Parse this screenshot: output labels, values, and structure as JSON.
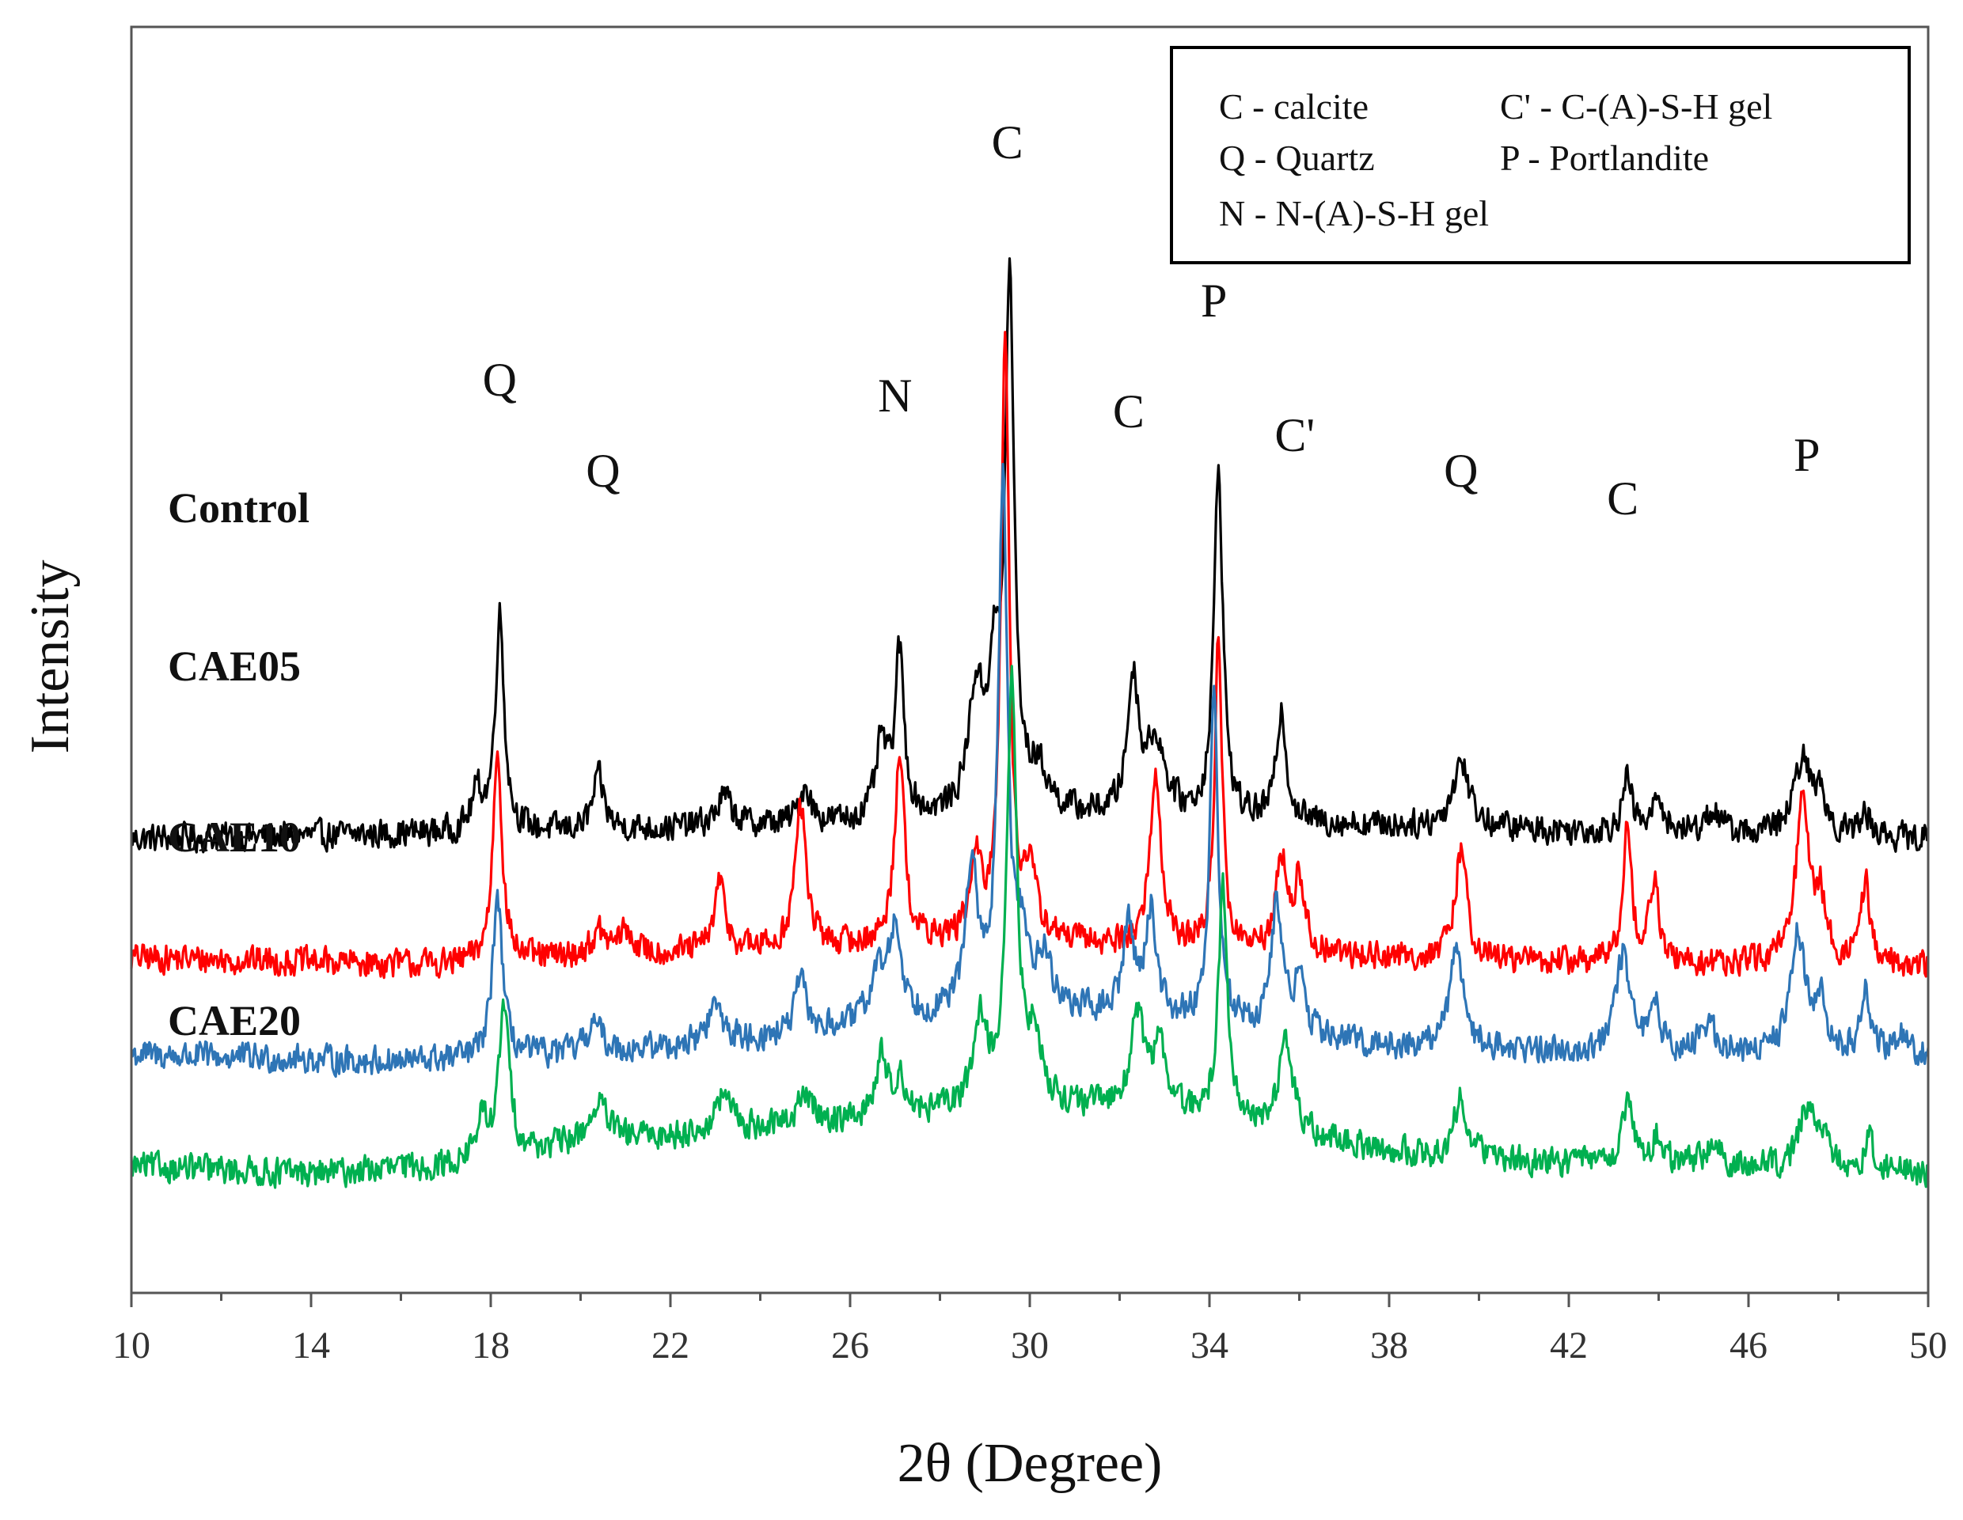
{
  "chart_data": {
    "type": "line",
    "title": "",
    "xlabel": "2θ (Degree)",
    "ylabel": "Intensity",
    "xlim": [
      10,
      50
    ],
    "x_ticks": [
      10,
      14,
      18,
      22,
      26,
      30,
      34,
      38,
      42,
      46,
      50
    ],
    "x_tick_labels": [
      "10",
      "14",
      "18",
      "22",
      "26",
      "30",
      "34",
      "38",
      "42",
      "46",
      "50"
    ],
    "y_ticks_shown": false,
    "grid": false,
    "legend": {
      "placement": "top-right",
      "entries": [
        "C - calcite",
        "C' - C-(A)-S-H gel",
        "Q - Quartz",
        "P - Portlandite",
        "N - N-(A)-S-H gel"
      ]
    },
    "peak_annotations": [
      {
        "label": "Q",
        "x": 18.2
      },
      {
        "label": "Q",
        "x": 20.5
      },
      {
        "label": "N",
        "x": 27.0
      },
      {
        "label": "C",
        "x": 29.5
      },
      {
        "label": "C",
        "x": 32.2
      },
      {
        "label": "P",
        "x": 34.1
      },
      {
        "label": "C'",
        "x": 35.9
      },
      {
        "label": "Q",
        "x": 39.6
      },
      {
        "label": "C",
        "x": 43.2
      },
      {
        "label": "P",
        "x": 47.3
      }
    ],
    "series": [
      {
        "name": "Control",
        "color": "#000000",
        "baseline": [
          [
            10,
            31
          ],
          [
            20,
            32
          ],
          [
            26,
            33
          ],
          [
            30,
            34
          ],
          [
            36,
            33
          ],
          [
            42,
            32
          ],
          [
            50,
            31
          ]
        ],
        "peaks": [
          {
            "x": 17.7,
            "h": 5,
            "w": 0.15
          },
          {
            "x": 18.2,
            "h": 29,
            "w": 0.12
          },
          {
            "x": 20.4,
            "h": 7,
            "w": 0.15
          },
          {
            "x": 23.2,
            "h": 4,
            "w": 0.2
          },
          {
            "x": 25.0,
            "h": 5,
            "w": 0.15
          },
          {
            "x": 26.7,
            "h": 10,
            "w": 0.15
          },
          {
            "x": 27.1,
            "h": 22,
            "w": 0.12
          },
          {
            "x": 28.8,
            "h": 16,
            "w": 0.2
          },
          {
            "x": 29.2,
            "h": 16,
            "w": 0.15
          },
          {
            "x": 29.55,
            "h": 70,
            "w": 0.12
          },
          {
            "x": 30.2,
            "h": 5,
            "w": 0.25
          },
          {
            "x": 32.3,
            "h": 18,
            "w": 0.15
          },
          {
            "x": 32.8,
            "h": 10,
            "w": 0.25
          },
          {
            "x": 34.2,
            "h": 47,
            "w": 0.12
          },
          {
            "x": 35.6,
            "h": 15,
            "w": 0.13
          },
          {
            "x": 39.6,
            "h": 9,
            "w": 0.22
          },
          {
            "x": 43.3,
            "h": 7,
            "w": 0.13
          },
          {
            "x": 44.0,
            "h": 5,
            "w": 0.13
          },
          {
            "x": 45.2,
            "h": 3,
            "w": 0.2
          },
          {
            "x": 47.2,
            "h": 10,
            "w": 0.22
          },
          {
            "x": 47.6,
            "h": 5,
            "w": 0.15
          },
          {
            "x": 48.6,
            "h": 3,
            "w": 0.15
          }
        ]
      },
      {
        "name": "CAE05",
        "color": "#ff0000",
        "baseline": [
          [
            10,
            15
          ],
          [
            17,
            14
          ],
          [
            20,
            15
          ],
          [
            24,
            16
          ],
          [
            28,
            17
          ],
          [
            30,
            17
          ],
          [
            34,
            16
          ],
          [
            38,
            15
          ],
          [
            44,
            14
          ],
          [
            50,
            14
          ]
        ],
        "peaks": [
          {
            "x": 18.15,
            "h": 29,
            "w": 0.12
          },
          {
            "x": 20.4,
            "h": 3,
            "w": 0.2
          },
          {
            "x": 21.0,
            "h": 3,
            "w": 0.2
          },
          {
            "x": 23.1,
            "h": 9,
            "w": 0.15
          },
          {
            "x": 24.9,
            "h": 19,
            "w": 0.15
          },
          {
            "x": 27.1,
            "h": 26,
            "w": 0.13
          },
          {
            "x": 28.8,
            "h": 10,
            "w": 0.15
          },
          {
            "x": 29.45,
            "h": 82,
            "w": 0.11
          },
          {
            "x": 30.0,
            "h": 8,
            "w": 0.2
          },
          {
            "x": 32.8,
            "h": 23,
            "w": 0.15
          },
          {
            "x": 34.2,
            "h": 42,
            "w": 0.1
          },
          {
            "x": 35.6,
            "h": 13,
            "w": 0.13
          },
          {
            "x": 36.0,
            "h": 10,
            "w": 0.13
          },
          {
            "x": 39.6,
            "h": 15,
            "w": 0.15
          },
          {
            "x": 43.3,
            "h": 18,
            "w": 0.12
          },
          {
            "x": 43.9,
            "h": 11,
            "w": 0.12
          },
          {
            "x": 47.2,
            "h": 21,
            "w": 0.18
          },
          {
            "x": 47.6,
            "h": 8,
            "w": 0.15
          },
          {
            "x": 48.6,
            "h": 11,
            "w": 0.12
          }
        ]
      },
      {
        "name": "CAE10",
        "color": "#2e75b6",
        "baseline": [
          [
            10,
            2
          ],
          [
            16,
            1
          ],
          [
            20,
            2
          ],
          [
            24,
            4
          ],
          [
            28,
            7
          ],
          [
            30,
            8
          ],
          [
            34,
            6
          ],
          [
            38,
            3
          ],
          [
            44,
            2
          ],
          [
            50,
            2
          ]
        ],
        "peaks": [
          {
            "x": 18.15,
            "h": 22,
            "w": 0.13
          },
          {
            "x": 20.3,
            "h": 4,
            "w": 0.2
          },
          {
            "x": 23.0,
            "h": 5,
            "w": 0.2
          },
          {
            "x": 24.9,
            "h": 7,
            "w": 0.15
          },
          {
            "x": 26.6,
            "h": 6,
            "w": 0.2
          },
          {
            "x": 27.0,
            "h": 12,
            "w": 0.18
          },
          {
            "x": 28.7,
            "h": 20,
            "w": 0.15
          },
          {
            "x": 29.4,
            "h": 70,
            "w": 0.12
          },
          {
            "x": 29.8,
            "h": 8,
            "w": 0.15
          },
          {
            "x": 30.3,
            "h": 7,
            "w": 0.2
          },
          {
            "x": 32.2,
            "h": 12,
            "w": 0.15
          },
          {
            "x": 32.7,
            "h": 14,
            "w": 0.15
          },
          {
            "x": 34.1,
            "h": 44,
            "w": 0.11
          },
          {
            "x": 35.5,
            "h": 17,
            "w": 0.15
          },
          {
            "x": 36.0,
            "h": 7,
            "w": 0.15
          },
          {
            "x": 39.5,
            "h": 14,
            "w": 0.18
          },
          {
            "x": 43.2,
            "h": 13,
            "w": 0.18
          },
          {
            "x": 43.9,
            "h": 8,
            "w": 0.13
          },
          {
            "x": 45.1,
            "h": 4,
            "w": 0.2
          },
          {
            "x": 47.1,
            "h": 16,
            "w": 0.2
          },
          {
            "x": 47.6,
            "h": 7,
            "w": 0.15
          },
          {
            "x": 48.6,
            "h": 8,
            "w": 0.12
          },
          {
            "x": 49.4,
            "h": 3,
            "w": 0.15
          }
        ]
      },
      {
        "name": "CAE20",
        "color": "#00b050",
        "baseline": [
          [
            10,
            -13
          ],
          [
            14,
            -14
          ],
          [
            17,
            -13
          ],
          [
            20,
            -10
          ],
          [
            24,
            -8
          ],
          [
            28,
            -6
          ],
          [
            30,
            -5
          ],
          [
            33,
            -6
          ],
          [
            36,
            -9
          ],
          [
            39,
            -12
          ],
          [
            44,
            -13
          ],
          [
            50,
            -14
          ]
        ],
        "peaks": [
          {
            "x": 17.8,
            "h": 5,
            "w": 0.15
          },
          {
            "x": 18.3,
            "h": 20,
            "w": 0.14
          },
          {
            "x": 20.4,
            "h": 5,
            "w": 0.25
          },
          {
            "x": 23.2,
            "h": 5,
            "w": 0.2
          },
          {
            "x": 25.0,
            "h": 4,
            "w": 0.2
          },
          {
            "x": 26.7,
            "h": 8,
            "w": 0.15
          },
          {
            "x": 27.1,
            "h": 5,
            "w": 0.15
          },
          {
            "x": 28.9,
            "h": 12,
            "w": 0.18
          },
          {
            "x": 29.6,
            "h": 56,
            "w": 0.13
          },
          {
            "x": 30.1,
            "h": 8,
            "w": 0.2
          },
          {
            "x": 32.4,
            "h": 12,
            "w": 0.2
          },
          {
            "x": 32.9,
            "h": 8,
            "w": 0.2
          },
          {
            "x": 34.3,
            "h": 32,
            "w": 0.12
          },
          {
            "x": 35.7,
            "h": 13,
            "w": 0.18
          },
          {
            "x": 39.6,
            "h": 8,
            "w": 0.2
          },
          {
            "x": 43.3,
            "h": 8,
            "w": 0.15
          },
          {
            "x": 44.0,
            "h": 4,
            "w": 0.15
          },
          {
            "x": 45.2,
            "h": 3,
            "w": 0.2
          },
          {
            "x": 47.3,
            "h": 8,
            "w": 0.22
          },
          {
            "x": 47.7,
            "h": 4,
            "w": 0.15
          },
          {
            "x": 48.7,
            "h": 4,
            "w": 0.15
          }
        ]
      }
    ]
  }
}
